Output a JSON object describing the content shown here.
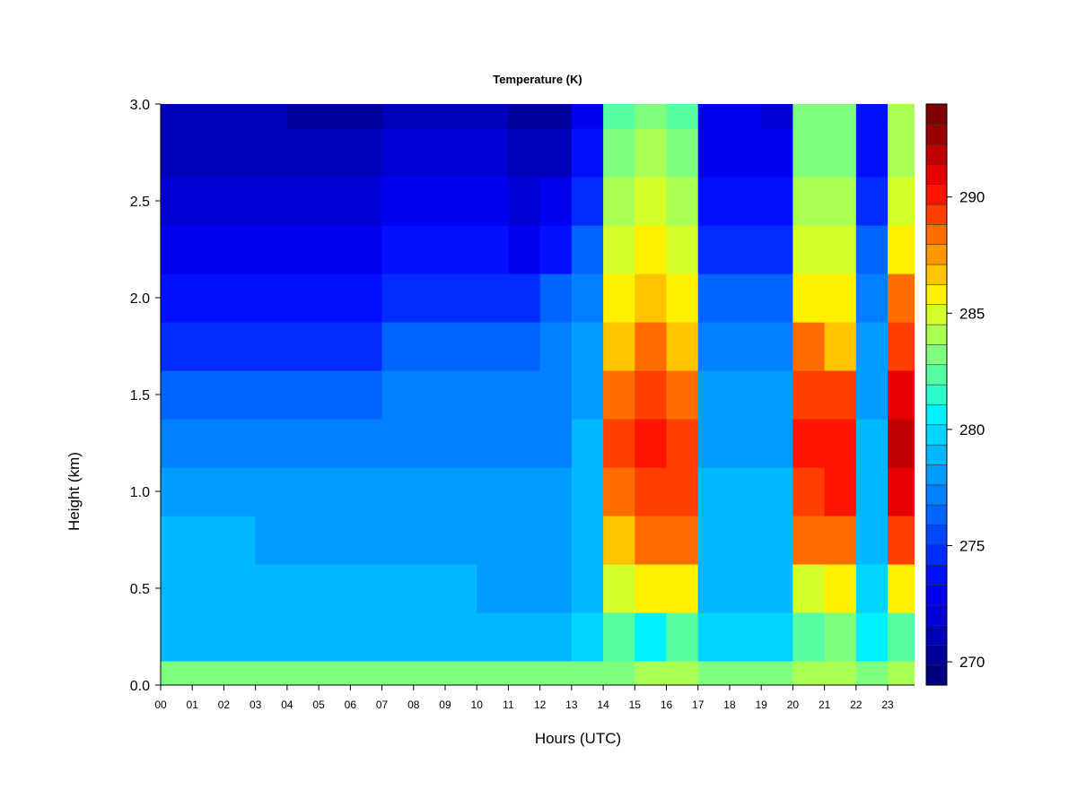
{
  "chart_data": {
    "type": "heatmap",
    "title": "Temperature (K)",
    "xlabel": "Hours (UTC)",
    "ylabel": "Height (km)",
    "xlim": [
      0,
      23.85
    ],
    "ylim": [
      0.0,
      3.0
    ],
    "x_ticks": [
      "00",
      "01",
      "02",
      "03",
      "04",
      "05",
      "06",
      "07",
      "08",
      "09",
      "10",
      "11",
      "12",
      "13",
      "14",
      "15",
      "16",
      "17",
      "18",
      "19",
      "20",
      "21",
      "22",
      "23"
    ],
    "y_ticks": [
      "0.0",
      "0.5",
      "1.0",
      "1.5",
      "2.0",
      "2.5",
      "3.0"
    ],
    "colorbar": {
      "range": [
        269,
        294
      ],
      "levels": 25,
      "tick_values": [
        270,
        275,
        280,
        285,
        290
      ],
      "tick_labels": [
        "270",
        "275",
        "280",
        "285",
        "290"
      ],
      "colors": [
        "#00007F",
        "#00009A",
        "#0000B8",
        "#0000D5",
        "#0000F1",
        "#0010FF",
        "#002CFF",
        "#0048FF",
        "#0064FF",
        "#0080FF",
        "#009CFF",
        "#00B8FF",
        "#00D4FF",
        "#00F0FF",
        "#2AFFCD",
        "#55FFA2",
        "#80FF7F",
        "#AAFF55",
        "#D5FF2A",
        "#FFF000",
        "#FFC400",
        "#FF9800",
        "#FF6C00",
        "#FF4000",
        "#FF1400",
        "#E40000",
        "#BE0000",
        "#980000",
        "#7F0000"
      ]
    },
    "hours": [
      0,
      1,
      2,
      3,
      4,
      5,
      6,
      7,
      8,
      9,
      10,
      11,
      12,
      13,
      14,
      15,
      16,
      17,
      18,
      19,
      20,
      21,
      22,
      23
    ],
    "heights_km": [
      0.0,
      0.25,
      0.5,
      0.75,
      1.0,
      1.25,
      1.5,
      1.75,
      2.0,
      2.25,
      2.5,
      2.75,
      3.0
    ],
    "values_K": [
      [
        283,
        279,
        279,
        279,
        278,
        277,
        276,
        275,
        274,
        273,
        272,
        271,
        271
      ],
      [
        283,
        279,
        279,
        279,
        278,
        277,
        276,
        275,
        274,
        273,
        272,
        271,
        271
      ],
      [
        283,
        279,
        279,
        279,
        278,
        277,
        276,
        275,
        274,
        273,
        272,
        271,
        271
      ],
      [
        283,
        279,
        279,
        278,
        278,
        277,
        276,
        275,
        274,
        273,
        272,
        271,
        271
      ],
      [
        283,
        279,
        279,
        278,
        278,
        277,
        276,
        275,
        274,
        273,
        272,
        271,
        270
      ],
      [
        283,
        279,
        279,
        278,
        278,
        277,
        276,
        275,
        274,
        273,
        272,
        271,
        270
      ],
      [
        283,
        279,
        279,
        278,
        278,
        277,
        276,
        275,
        274,
        273,
        272,
        271,
        270
      ],
      [
        283,
        279,
        279,
        278,
        278,
        277,
        277,
        276,
        275,
        274,
        273,
        272,
        271
      ],
      [
        283,
        279,
        279,
        278,
        278,
        277,
        277,
        276,
        275,
        274,
        273,
        272,
        271
      ],
      [
        283,
        279,
        279,
        278,
        278,
        277,
        277,
        276,
        275,
        274,
        273,
        272,
        271
      ],
      [
        283,
        279,
        278,
        278,
        278,
        277,
        277,
        276,
        275,
        274,
        273,
        272,
        271
      ],
      [
        283,
        279,
        278,
        278,
        278,
        277,
        277,
        276,
        275,
        273,
        272,
        271,
        270
      ],
      [
        283,
        279,
        278,
        278,
        278,
        277,
        277,
        277,
        276,
        274,
        273,
        271,
        270
      ],
      [
        283,
        280,
        279,
        279,
        279,
        279,
        278,
        278,
        277,
        276,
        275,
        274,
        273
      ],
      [
        283,
        282,
        285,
        287,
        288,
        289,
        288,
        287,
        286,
        285,
        284,
        283,
        282
      ],
      [
        284,
        281,
        286,
        288,
        289,
        290,
        289,
        288,
        287,
        286,
        285,
        284,
        283
      ],
      [
        284,
        282,
        286,
        288,
        289,
        289,
        288,
        287,
        286,
        285,
        284,
        283,
        282
      ],
      [
        283,
        280,
        279,
        279,
        279,
        278,
        278,
        277,
        276,
        275,
        274,
        273,
        273
      ],
      [
        283,
        280,
        279,
        279,
        279,
        278,
        278,
        277,
        276,
        275,
        274,
        273,
        273
      ],
      [
        283,
        280,
        279,
        279,
        279,
        278,
        278,
        277,
        276,
        275,
        274,
        273,
        272
      ],
      [
        284,
        282,
        285,
        288,
        289,
        290,
        289,
        288,
        286,
        285,
        284,
        283,
        283
      ],
      [
        284,
        283,
        286,
        288,
        290,
        290,
        289,
        287,
        286,
        285,
        284,
        283,
        283
      ],
      [
        283,
        281,
        280,
        279,
        279,
        279,
        278,
        278,
        277,
        276,
        275,
        274,
        274
      ],
      [
        284,
        282,
        286,
        289,
        291,
        292,
        291,
        289,
        288,
        286,
        285,
        284,
        284
      ]
    ]
  }
}
